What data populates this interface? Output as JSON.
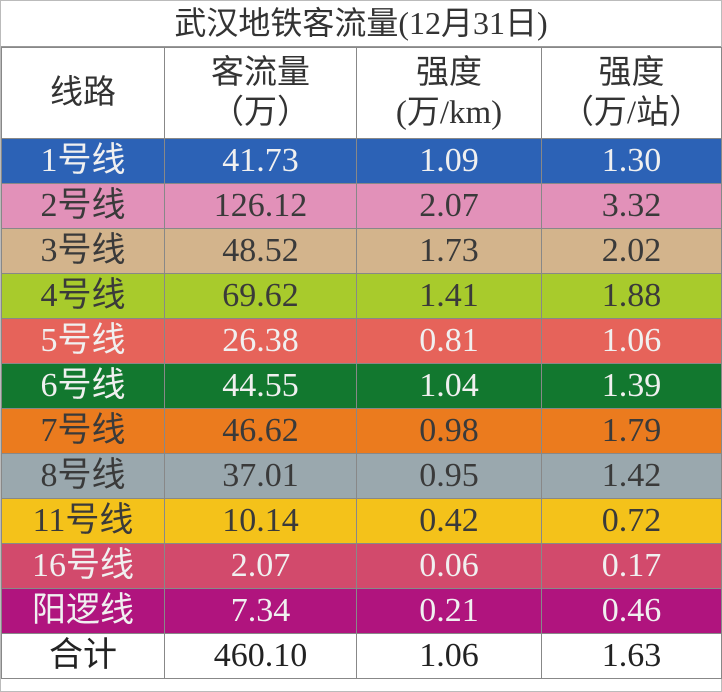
{
  "title": "武汉地铁客流量(12月31日)",
  "table": {
    "header": [
      [
        "线路"
      ],
      [
        "客流量",
        "（万）"
      ],
      [
        "强度",
        "(万/km)"
      ],
      [
        "强度",
        "（万/站）"
      ]
    ],
    "rows": [
      {
        "cells": [
          "1号线",
          "41.73",
          "1.09",
          "1.30"
        ],
        "color": "#2c62b6"
      },
      {
        "cells": [
          "2号线",
          "126.12",
          "2.07",
          "3.32"
        ],
        "color": "#e291b9"
      },
      {
        "cells": [
          "3号线",
          "48.52",
          "1.73",
          "2.02"
        ],
        "color": "#d3b48c"
      },
      {
        "cells": [
          "4号线",
          "69.62",
          "1.41",
          "1.88"
        ],
        "color": "#a8cb2c"
      },
      {
        "cells": [
          "5号线",
          "26.38",
          "0.81",
          "1.06"
        ],
        "color": "#e6635a"
      },
      {
        "cells": [
          "6号线",
          "44.55",
          "1.04",
          "1.39"
        ],
        "color": "#12782f"
      },
      {
        "cells": [
          "7号线",
          "46.62",
          "0.98",
          "1.79"
        ],
        "color": "#eb7b1e"
      },
      {
        "cells": [
          "8号线",
          "37.01",
          "0.95",
          "1.42"
        ],
        "color": "#9aa8ae"
      },
      {
        "cells": [
          "11号线",
          "10.14",
          "0.42",
          "0.72"
        ],
        "color": "#f4c21a"
      },
      {
        "cells": [
          "16号线",
          "2.07",
          "0.06",
          "0.17"
        ],
        "color": "#d24a6c"
      },
      {
        "cells": [
          "阳逻线",
          "7.34",
          "0.21",
          "0.46"
        ],
        "color": "#b0147e"
      },
      {
        "cells": [
          "合计",
          "460.10",
          "1.06",
          "1.63"
        ],
        "color": "#ffffff"
      }
    ]
  }
}
